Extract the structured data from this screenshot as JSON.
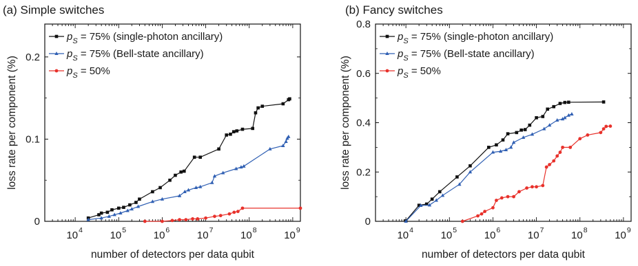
{
  "chart_data": [
    {
      "type": "line",
      "title": "(a) Simple switches",
      "xlabel": "number of detectors per data qubit",
      "ylabel": "loss rate per component (%)",
      "xscale": "log",
      "xlim": [
        2000,
        1500000000
      ],
      "ylim": [
        0,
        0.24
      ],
      "x_tick_bases": [
        "10",
        "10",
        "10",
        "10",
        "10",
        "10"
      ],
      "x_tick_exps": [
        "4",
        "5",
        "6",
        "7",
        "8",
        "9"
      ],
      "x_ticks": [
        10000,
        100000,
        1000000,
        10000000,
        100000000,
        1000000000
      ],
      "y_ticks": [
        0,
        0.1,
        0.2
      ],
      "y_tick_labels": [
        "0",
        "0.1",
        "0.2"
      ],
      "legend_position": "top-left",
      "series": [
        {
          "name_prefix": "p",
          "name_sub": "S",
          "name_rest": " = 75% (single-photon ancillary)",
          "color": "#111111",
          "marker": "square",
          "points": [
            [
              20000,
              0.004
            ],
            [
              35000,
              0.008
            ],
            [
              40000,
              0.01
            ],
            [
              55000,
              0.011
            ],
            [
              70000,
              0.014
            ],
            [
              100000,
              0.016
            ],
            [
              130000,
              0.017
            ],
            [
              180000,
              0.02
            ],
            [
              250000,
              0.023
            ],
            [
              300000,
              0.027
            ],
            [
              600000,
              0.036
            ],
            [
              900000,
              0.041
            ],
            [
              1500000,
              0.05
            ],
            [
              2000000,
              0.056
            ],
            [
              2700000,
              0.06
            ],
            [
              3200000,
              0.061
            ],
            [
              5500000,
              0.078
            ],
            [
              7500000,
              0.078
            ],
            [
              20000000,
              0.088
            ],
            [
              30000000,
              0.105
            ],
            [
              37000000,
              0.106
            ],
            [
              44000000,
              0.109
            ],
            [
              52000000,
              0.11
            ],
            [
              70000000,
              0.112
            ],
            [
              120000000,
              0.113
            ],
            [
              140000000,
              0.132
            ],
            [
              160000000,
              0.138
            ],
            [
              200000000,
              0.14
            ],
            [
              600000000,
              0.143
            ],
            [
              800000000,
              0.148
            ],
            [
              850000000,
              0.149
            ]
          ]
        },
        {
          "name_prefix": "p",
          "name_sub": "S",
          "name_rest": " = 75% (Bell-state ancillary)",
          "color": "#2f5fb3",
          "marker": "triangle",
          "points": [
            [
              20000,
              0.002
            ],
            [
              40000,
              0.004
            ],
            [
              60000,
              0.006
            ],
            [
              80000,
              0.008
            ],
            [
              110000,
              0.01
            ],
            [
              160000,
              0.013
            ],
            [
              200000,
              0.015
            ],
            [
              280000,
              0.018
            ],
            [
              600000,
              0.024
            ],
            [
              1000000,
              0.027
            ],
            [
              2500000,
              0.031
            ],
            [
              3300000,
              0.036
            ],
            [
              4000000,
              0.038
            ],
            [
              6000000,
              0.041
            ],
            [
              7500000,
              0.042
            ],
            [
              14000000,
              0.047
            ],
            [
              16000000,
              0.055
            ],
            [
              25000000,
              0.059
            ],
            [
              50000000,
              0.064
            ],
            [
              65000000,
              0.066
            ],
            [
              75000000,
              0.067
            ],
            [
              300000000,
              0.088
            ],
            [
              600000000,
              0.092
            ],
            [
              700000000,
              0.097
            ],
            [
              750000000,
              0.101
            ],
            [
              800000000,
              0.103
            ]
          ]
        },
        {
          "name_prefix": "p",
          "name_sub": "S",
          "name_rest": " = 50%",
          "color": "#e8312b",
          "marker": "circle",
          "points": [
            [
              400000,
              0.0
            ],
            [
              1000000,
              0.0
            ],
            [
              1700000,
              0.001
            ],
            [
              2500000,
              0.002
            ],
            [
              3500000,
              0.002
            ],
            [
              5000000,
              0.003
            ],
            [
              6500000,
              0.003
            ],
            [
              10000000,
              0.004
            ],
            [
              16000000,
              0.006
            ],
            [
              22000000,
              0.007
            ],
            [
              35000000,
              0.009
            ],
            [
              45000000,
              0.011
            ],
            [
              55000000,
              0.012
            ],
            [
              70000000,
              0.016
            ],
            [
              1500000000,
              0.016
            ]
          ]
        }
      ]
    },
    {
      "type": "line",
      "title": "(b) Fancy switches",
      "xlabel": "number of detectors per data qubit",
      "ylabel": "loss rate per component (%)",
      "xscale": "log",
      "xlim": [
        2000,
        1500000000
      ],
      "ylim": [
        0,
        0.8
      ],
      "x_tick_bases": [
        "10",
        "10",
        "10",
        "10",
        "10",
        "10"
      ],
      "x_tick_exps": [
        "4",
        "5",
        "6",
        "7",
        "8",
        "9"
      ],
      "x_ticks": [
        10000,
        100000,
        1000000,
        10000000,
        100000000,
        1000000000
      ],
      "y_ticks": [
        0,
        0.2,
        0.4,
        0.6,
        0.8
      ],
      "y_tick_labels": [
        "0",
        "0.2",
        "0.4",
        "0.6",
        "0.8"
      ],
      "legend_position": "top-left",
      "series": [
        {
          "name_prefix": "p",
          "name_sub": "S",
          "name_rest": " = 75% (single-photon ancillary)",
          "color": "#111111",
          "marker": "square",
          "points": [
            [
              10000,
              0.002
            ],
            [
              20000,
              0.065
            ],
            [
              30000,
              0.07
            ],
            [
              40000,
              0.09
            ],
            [
              60000,
              0.12
            ],
            [
              150000,
              0.18
            ],
            [
              300000,
              0.225
            ],
            [
              800000,
              0.3
            ],
            [
              1200000,
              0.31
            ],
            [
              1700000,
              0.33
            ],
            [
              2200000,
              0.355
            ],
            [
              3500000,
              0.36
            ],
            [
              4500000,
              0.37
            ],
            [
              5500000,
              0.372
            ],
            [
              7000000,
              0.39
            ],
            [
              10000000,
              0.42
            ],
            [
              14000000,
              0.425
            ],
            [
              18000000,
              0.455
            ],
            [
              25000000,
              0.465
            ],
            [
              35000000,
              0.478
            ],
            [
              45000000,
              0.482
            ],
            [
              55000000,
              0.483
            ],
            [
              350000000,
              0.484
            ]
          ]
        },
        {
          "name_prefix": "p",
          "name_sub": "S",
          "name_rest": " = 75% (Bell-state ancillary)",
          "color": "#2f5fb3",
          "marker": "triangle",
          "points": [
            [
              10000,
              0.0
            ],
            [
              22000,
              0.064
            ],
            [
              35000,
              0.066
            ],
            [
              50000,
              0.085
            ],
            [
              70000,
              0.105
            ],
            [
              170000,
              0.15
            ],
            [
              300000,
              0.2
            ],
            [
              1000000,
              0.28
            ],
            [
              1500000,
              0.284
            ],
            [
              2000000,
              0.29
            ],
            [
              2600000,
              0.3
            ],
            [
              3000000,
              0.32
            ],
            [
              5000000,
              0.34
            ],
            [
              8000000,
              0.353
            ],
            [
              15000000,
              0.375
            ],
            [
              20000000,
              0.39
            ],
            [
              30000000,
              0.41
            ],
            [
              40000000,
              0.415
            ],
            [
              45000000,
              0.42
            ],
            [
              55000000,
              0.43
            ],
            [
              65000000,
              0.435
            ]
          ]
        },
        {
          "name_prefix": "p",
          "name_sub": "S",
          "name_rest": " = 50%",
          "color": "#e8312b",
          "marker": "circle",
          "points": [
            [
              200000,
              0.0
            ],
            [
              450000,
              0.022
            ],
            [
              550000,
              0.03
            ],
            [
              650000,
              0.04
            ],
            [
              1000000,
              0.055
            ],
            [
              1200000,
              0.085
            ],
            [
              1600000,
              0.095
            ],
            [
              2200000,
              0.1
            ],
            [
              3000000,
              0.1
            ],
            [
              4000000,
              0.12
            ],
            [
              6000000,
              0.135
            ],
            [
              8000000,
              0.14
            ],
            [
              10000000,
              0.14
            ],
            [
              14000000,
              0.145
            ],
            [
              17000000,
              0.22
            ],
            [
              20000000,
              0.23
            ],
            [
              25000000,
              0.245
            ],
            [
              30000000,
              0.265
            ],
            [
              35000000,
              0.28
            ],
            [
              40000000,
              0.3
            ],
            [
              60000000,
              0.3
            ],
            [
              100000000,
              0.335
            ],
            [
              150000000,
              0.35
            ],
            [
              300000000,
              0.36
            ],
            [
              350000000,
              0.375
            ],
            [
              400000000,
              0.385
            ],
            [
              500000000,
              0.386
            ]
          ]
        }
      ]
    }
  ]
}
